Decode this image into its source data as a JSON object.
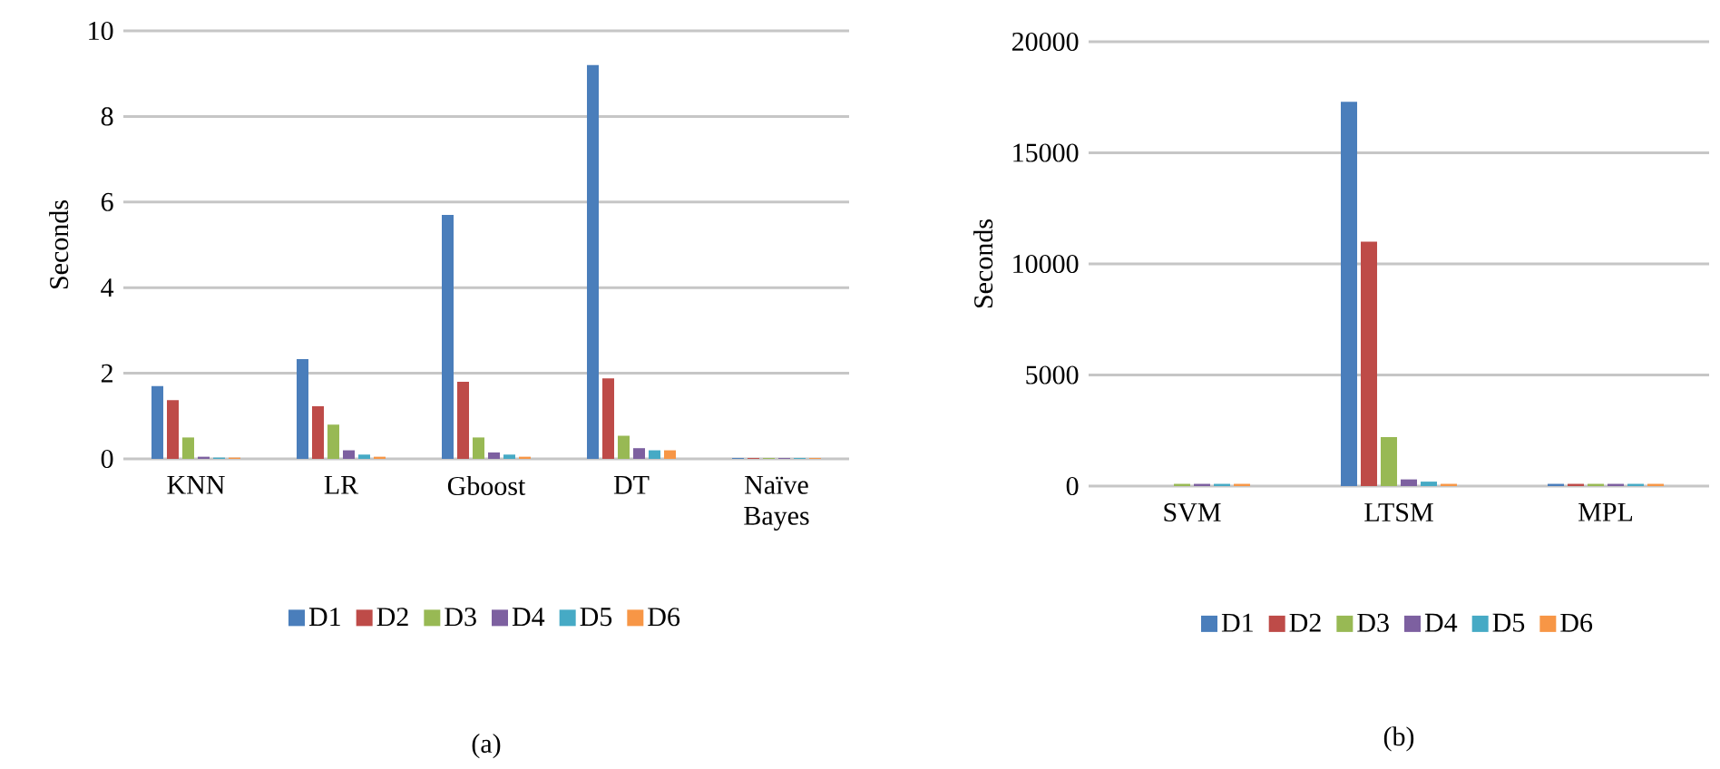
{
  "chart_data": [
    {
      "type": "bar",
      "ylabel": "Seconds",
      "categories": [
        "KNN",
        "LR",
        "Gboost",
        "DT",
        "Naïve Bayes"
      ],
      "ylim": [
        0,
        10
      ],
      "yticks": [
        0,
        2,
        4,
        6,
        8,
        10
      ],
      "grid": "y",
      "legend": "bottom",
      "annotations": [
        "(a)"
      ],
      "series": [
        {
          "name": "D1",
          "color": "#4a7ebb",
          "values": [
            1.7,
            2.33,
            5.7,
            9.2,
            0.02
          ]
        },
        {
          "name": "D2",
          "color": "#be4b48",
          "values": [
            1.37,
            1.23,
            1.8,
            1.88,
            0.02
          ]
        },
        {
          "name": "D3",
          "color": "#98b954",
          "values": [
            0.5,
            0.8,
            0.5,
            0.54,
            0.02
          ]
        },
        {
          "name": "D4",
          "color": "#7d60a0",
          "values": [
            0.05,
            0.2,
            0.15,
            0.25,
            0.02
          ]
        },
        {
          "name": "D5",
          "color": "#46aac5",
          "values": [
            0.03,
            0.1,
            0.1,
            0.2,
            0.02
          ]
        },
        {
          "name": "D6",
          "color": "#f79646",
          "values": [
            0.03,
            0.05,
            0.05,
            0.2,
            0.02
          ]
        }
      ]
    },
    {
      "type": "bar",
      "ylabel": "Seconds",
      "categories": [
        "SVM",
        "LTSM",
        "MPL"
      ],
      "ylim": [
        0,
        20000
      ],
      "yticks": [
        0,
        5000,
        10000,
        15000,
        20000
      ],
      "grid": "y",
      "legend": "bottom",
      "annotations": [
        "(b)"
      ],
      "series": [
        {
          "name": "D1",
          "color": "#4a7ebb",
          "values": [
            0,
            17300,
            100
          ]
        },
        {
          "name": "D2",
          "color": "#be4b48",
          "values": [
            0,
            11000,
            100
          ]
        },
        {
          "name": "D3",
          "color": "#98b954",
          "values": [
            100,
            2200,
            100
          ]
        },
        {
          "name": "D4",
          "color": "#7d60a0",
          "values": [
            100,
            300,
            100
          ]
        },
        {
          "name": "D5",
          "color": "#46aac5",
          "values": [
            100,
            200,
            100
          ]
        },
        {
          "name": "D6",
          "color": "#f79646",
          "values": [
            100,
            100,
            100
          ]
        }
      ]
    }
  ]
}
